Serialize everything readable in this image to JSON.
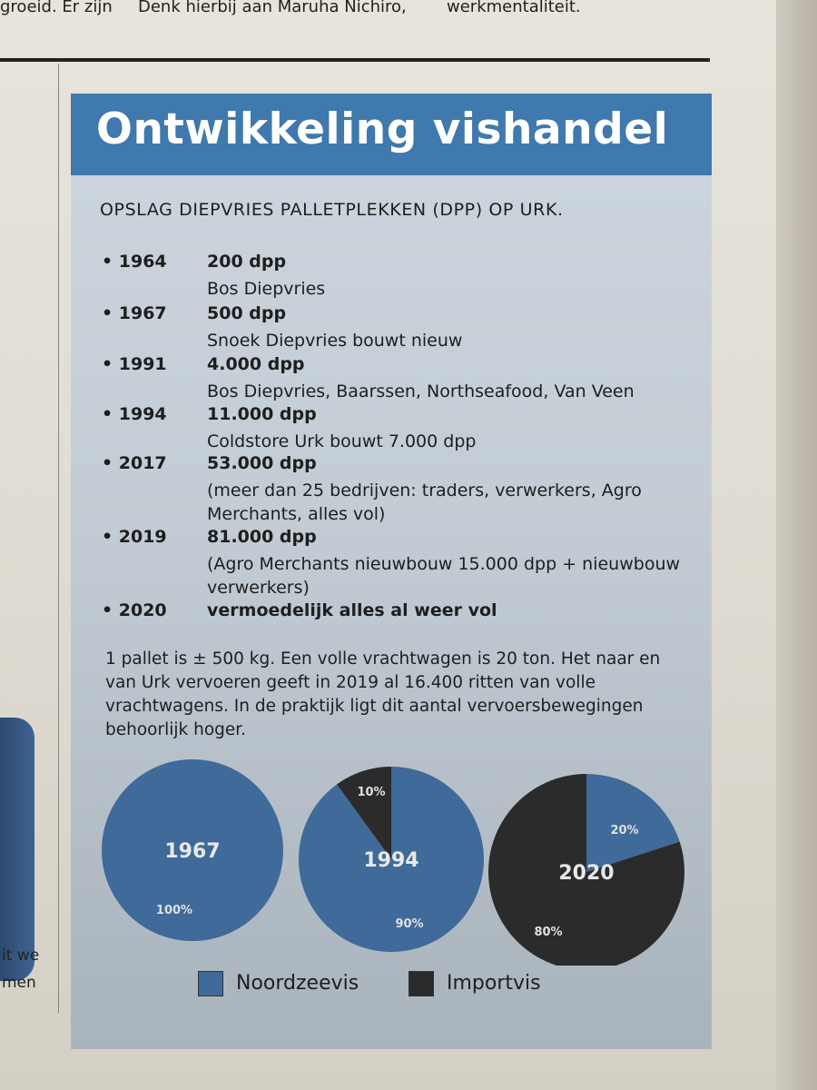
{
  "top_text": {
    "left": "groeid. Er zijn",
    "middle": "Denk hierbij aan Maruha Nichiro,",
    "right": "werkmentaliteit."
  },
  "side_text": [
    "it we",
    "men"
  ],
  "title": "Ontwikkeling vishandel",
  "subtitle": "OPSLAG DIEPVRIES PALLETPLEKKEN (DPP) OP URK.",
  "entries": [
    {
      "year": "• 1964",
      "amount": "200 dpp",
      "note": "Bos Diepvries"
    },
    {
      "year": "• 1967",
      "amount": "500 dpp",
      "note": "Snoek Diepvries bouwt nieuw"
    },
    {
      "year": "• 1991",
      "amount": "4.000 dpp",
      "note": "Bos Diepvries, Baarssen, Northseafood, Van Veen"
    },
    {
      "year": "• 1994",
      "amount": "11.000 dpp",
      "note": "Coldstore Urk bouwt 7.000 dpp"
    },
    {
      "year": "• 2017",
      "amount": "53.000 dpp",
      "note": "(meer dan 25 bedrijven: traders, verwerkers, Agro Merchants, alles vol)"
    },
    {
      "year": "• 2019",
      "amount": "81.000 dpp",
      "note": "(Agro Merchants nieuwbouw 15.000 dpp + nieuwbouw verwerkers)"
    },
    {
      "year": "• 2020",
      "amount": "vermoedelijk alles al weer vol",
      "note": ""
    }
  ],
  "paragraph": "1 pallet is ± 500 kg. Een volle vrachtwagen is 20 ton. Het naar en van Urk vervoeren geeft in 2019 al 16.400 ritten van volle vrachtwagens. In de praktijk ligt dit aantal vervoersbewegingen behoorlijk hoger.",
  "colors": {
    "noordzeevis": "#3f6a9a",
    "importvis": "#2b2b2b",
    "title_bar": "#3f79ad"
  },
  "chart_data": [
    {
      "type": "pie",
      "title": "1967",
      "categories": [
        "Noordzeevis",
        "Importvis"
      ],
      "values": [
        100,
        0
      ],
      "labels": [
        "100%",
        ""
      ]
    },
    {
      "type": "pie",
      "title": "1994",
      "categories": [
        "Noordzeevis",
        "Importvis"
      ],
      "values": [
        90,
        10
      ],
      "labels": [
        "90%",
        "10%"
      ]
    },
    {
      "type": "pie",
      "title": "2020",
      "categories": [
        "Noordzeevis",
        "Importvis"
      ],
      "values": [
        20,
        80
      ],
      "labels": [
        "20%",
        "80%"
      ]
    }
  ],
  "legend": [
    {
      "label": "Noordzeevis"
    },
    {
      "label": "Importvis"
    }
  ]
}
